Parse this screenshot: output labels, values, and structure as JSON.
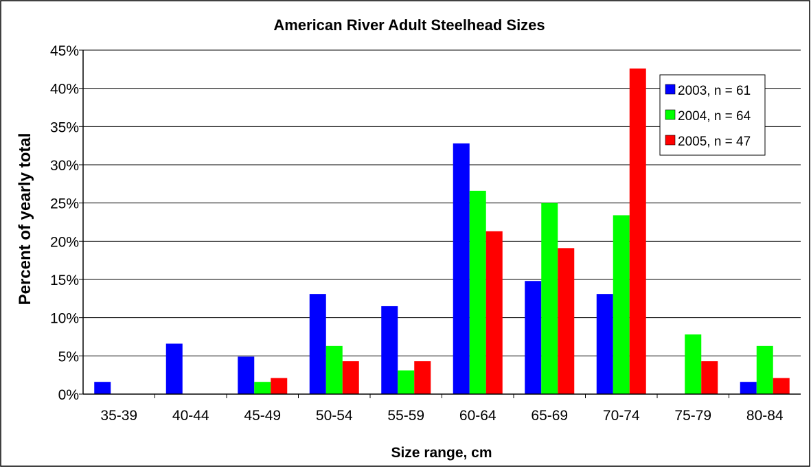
{
  "chart_data": {
    "type": "bar",
    "title": "American River Adult Steelhead Sizes",
    "xlabel": "Size range, cm",
    "ylabel": "Percent of yearly total",
    "categories": [
      "35-39",
      "40-44",
      "45-49",
      "50-54",
      "55-59",
      "60-64",
      "65-69",
      "70-74",
      "75-79",
      "80-84"
    ],
    "y_ticks": [
      "0%",
      "5%",
      "10%",
      "15%",
      "20%",
      "25%",
      "30%",
      "35%",
      "40%",
      "45%"
    ],
    "ylim": [
      0,
      45
    ],
    "y_unit": "%",
    "grid": true,
    "legend_position": "top-right",
    "series": [
      {
        "name": "2003, n = 61",
        "color": "#0000ff",
        "values": [
          1.6,
          6.6,
          4.9,
          13.1,
          11.5,
          32.8,
          14.8,
          13.1,
          0,
          1.6
        ]
      },
      {
        "name": "2004, n = 64",
        "color": "#00ff00",
        "values": [
          0,
          0,
          1.6,
          6.3,
          3.1,
          26.6,
          25.0,
          23.4,
          7.8,
          6.3
        ]
      },
      {
        "name": "2005, n = 47",
        "color": "#ff0000",
        "values": [
          0,
          0,
          2.1,
          4.3,
          4.3,
          21.3,
          19.1,
          42.6,
          4.3,
          2.1
        ]
      }
    ]
  }
}
